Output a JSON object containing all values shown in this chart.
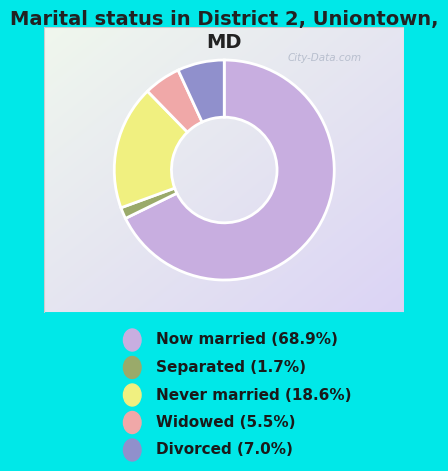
{
  "title": "Marital status in District 2, Uniontown,\nMD",
  "slices": [
    68.9,
    1.7,
    18.6,
    5.5,
    7.0
  ],
  "labels": [
    "Now married (68.9%)",
    "Separated (1.7%)",
    "Never married (18.6%)",
    "Widowed (5.5%)",
    "Divorced (7.0%)"
  ],
  "colors": [
    "#c8aee0",
    "#9aaa6a",
    "#f0f080",
    "#f0a8a8",
    "#9090cc"
  ],
  "bg_color": "#00e8e8",
  "title_fontsize": 14,
  "legend_fontsize": 11,
  "donut_width": 0.52,
  "start_angle": 90,
  "watermark": "City-Data.com"
}
